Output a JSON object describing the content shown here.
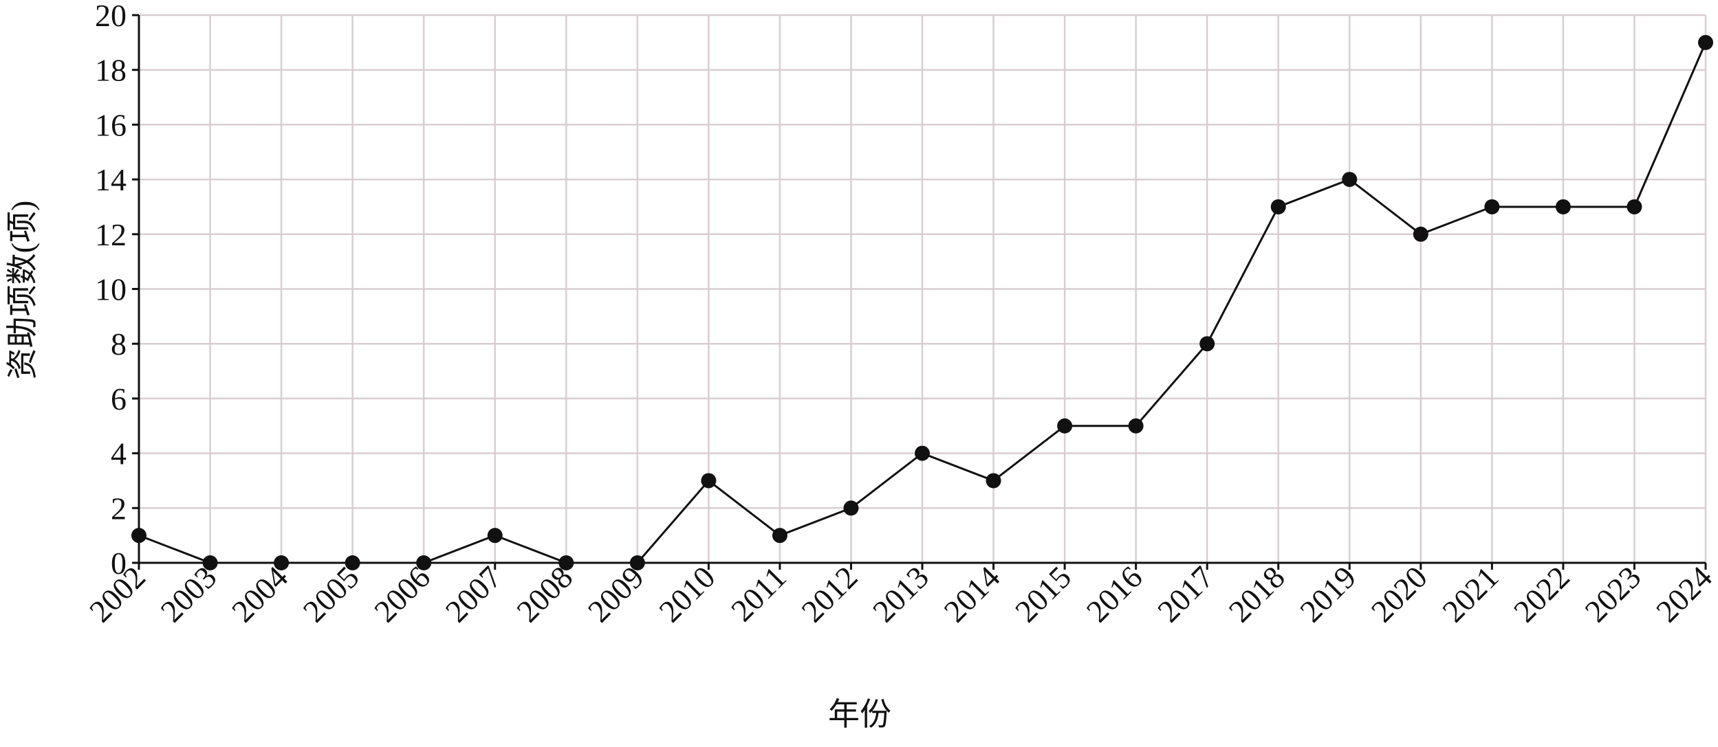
{
  "chart_data": {
    "type": "line",
    "x_label": "年份",
    "y_label": "资助项数(项)",
    "x": [
      2002,
      2003,
      2004,
      2005,
      2006,
      2007,
      2008,
      2009,
      2010,
      2011,
      2012,
      2013,
      2014,
      2015,
      2016,
      2017,
      2018,
      2019,
      2020,
      2021,
      2022,
      2023,
      2024
    ],
    "values": [
      1,
      0,
      0,
      0,
      0,
      1,
      0,
      0,
      3,
      1,
      2,
      4,
      3,
      5,
      5,
      8,
      13,
      14,
      12,
      13,
      13,
      13,
      19
    ],
    "color": "#111111",
    "xlim": [
      2002,
      2024
    ],
    "xticks": [
      2002,
      2003,
      2004,
      2005,
      2006,
      2007,
      2008,
      2009,
      2010,
      2011,
      2012,
      2013,
      2014,
      2015,
      2016,
      2017,
      2018,
      2019,
      2020,
      2021,
      2022,
      2023,
      2024
    ],
    "ylim": [
      0,
      20
    ],
    "yticks": [
      0,
      2,
      4,
      6,
      8,
      10,
      12,
      14,
      16,
      18,
      20
    ],
    "grid": true
  }
}
